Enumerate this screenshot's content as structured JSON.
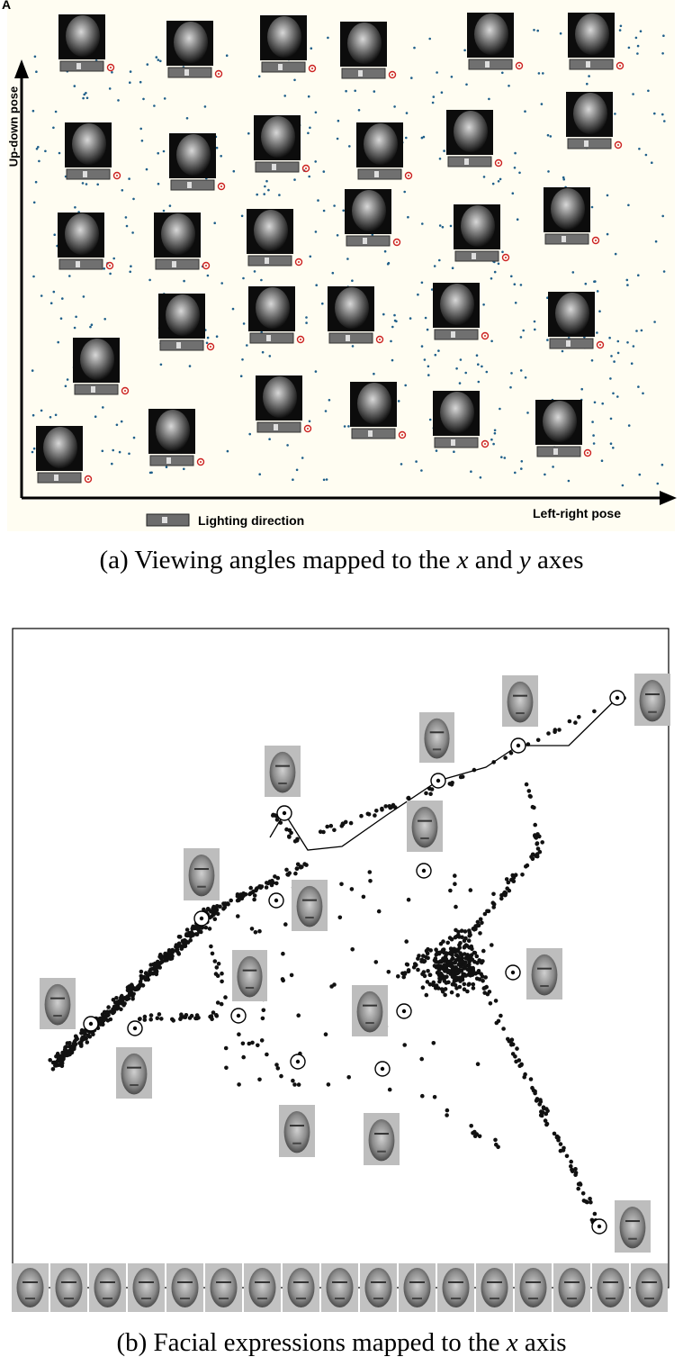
{
  "panel_a": {
    "label": "A",
    "ylabel": "Up-down pose",
    "xlabel": "Left-right pose",
    "legend": "Lighting direction",
    "caption_prefix": "(a) Viewing angles mapped to the ",
    "caption_x": "x",
    "caption_mid": " and ",
    "caption_y": "y",
    "caption_suffix": " axes"
  },
  "panel_b": {
    "caption_prefix": "(b) Facial expressions mapped to the ",
    "caption_x": "x",
    "caption_suffix": " axis"
  },
  "colors": {
    "dots_a": "#1f5f8a",
    "marker_a": "#cc2222",
    "dots_b": "#111111"
  }
}
